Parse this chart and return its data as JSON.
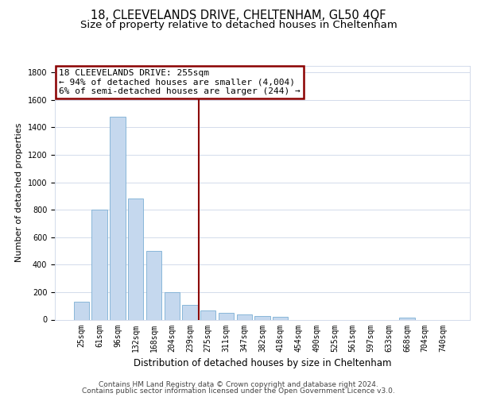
{
  "title1": "18, CLEEVELANDS DRIVE, CHELTENHAM, GL50 4QF",
  "title2": "Size of property relative to detached houses in Cheltenham",
  "xlabel": "Distribution of detached houses by size in Cheltenham",
  "ylabel": "Number of detached properties",
  "categories": [
    "25sqm",
    "61sqm",
    "96sqm",
    "132sqm",
    "168sqm",
    "204sqm",
    "239sqm",
    "275sqm",
    "311sqm",
    "347sqm",
    "382sqm",
    "418sqm",
    "454sqm",
    "490sqm",
    "525sqm",
    "561sqm",
    "597sqm",
    "633sqm",
    "668sqm",
    "704sqm",
    "740sqm"
  ],
  "values": [
    130,
    800,
    1480,
    880,
    500,
    200,
    107,
    65,
    47,
    35,
    28,
    20,
    0,
    0,
    0,
    0,
    0,
    0,
    15,
    0,
    0
  ],
  "bar_color": "#c5d8ee",
  "bar_edge_color": "#7bafd4",
  "property_line_x": 6.5,
  "annotation_line1": "18 CLEEVELANDS DRIVE: 255sqm",
  "annotation_line2": "← 94% of detached houses are smaller (4,004)",
  "annotation_line3": "6% of semi-detached houses are larger (244) →",
  "annotation_box_color": "#8b0000",
  "ylim": [
    0,
    1850
  ],
  "yticks": [
    0,
    200,
    400,
    600,
    800,
    1000,
    1200,
    1400,
    1600,
    1800
  ],
  "footer1": "Contains HM Land Registry data © Crown copyright and database right 2024.",
  "footer2": "Contains public sector information licensed under the Open Government Licence v3.0.",
  "bg_color": "#ffffff",
  "grid_color": "#ccd6e8",
  "title1_fontsize": 10.5,
  "title2_fontsize": 9.5,
  "xlabel_fontsize": 8.5,
  "ylabel_fontsize": 8,
  "tick_fontsize": 7,
  "footer_fontsize": 6.5,
  "annot_fontsize": 8
}
